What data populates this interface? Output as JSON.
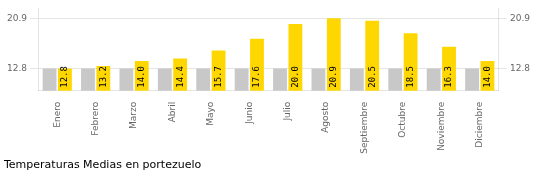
{
  "chart_data": {
    "type": "bar",
    "title": "Temperaturas Medias en portezuelo",
    "categories": [
      "Enero",
      "Febrero",
      "Marzo",
      "Abril",
      "Mayo",
      "Junio",
      "Julio",
      "Agosto",
      "Septiembre",
      "Octubre",
      "Noviembre",
      "Diciembre"
    ],
    "series": [
      {
        "color": "#C8C8C8",
        "values": [
          12.8,
          12.8,
          12.8,
          12.8,
          12.8,
          12.8,
          12.8,
          12.8,
          12.8,
          12.8,
          12.8,
          12.8
        ]
      },
      {
        "color": "#FFD700",
        "values": [
          12.8,
          13.2,
          14.0,
          14.4,
          15.7,
          17.6,
          20.0,
          20.9,
          20.5,
          18.5,
          16.3,
          14.0
        ],
        "data_labels": true,
        "value_labels": [
          "12.8",
          "13.2",
          "14.0",
          "14.4",
          "15.7",
          "17.6",
          "20.0",
          "20.9",
          "20.5",
          "18.5",
          "16.3",
          "14.0"
        ]
      }
    ],
    "ylim": [
      9.2,
      22.5
    ],
    "yticks": [
      12.8,
      20.9
    ],
    "y2lim": [
      9.2,
      22.5
    ],
    "y2ticks": [
      12.8,
      20.9
    ],
    "grid": true
  }
}
